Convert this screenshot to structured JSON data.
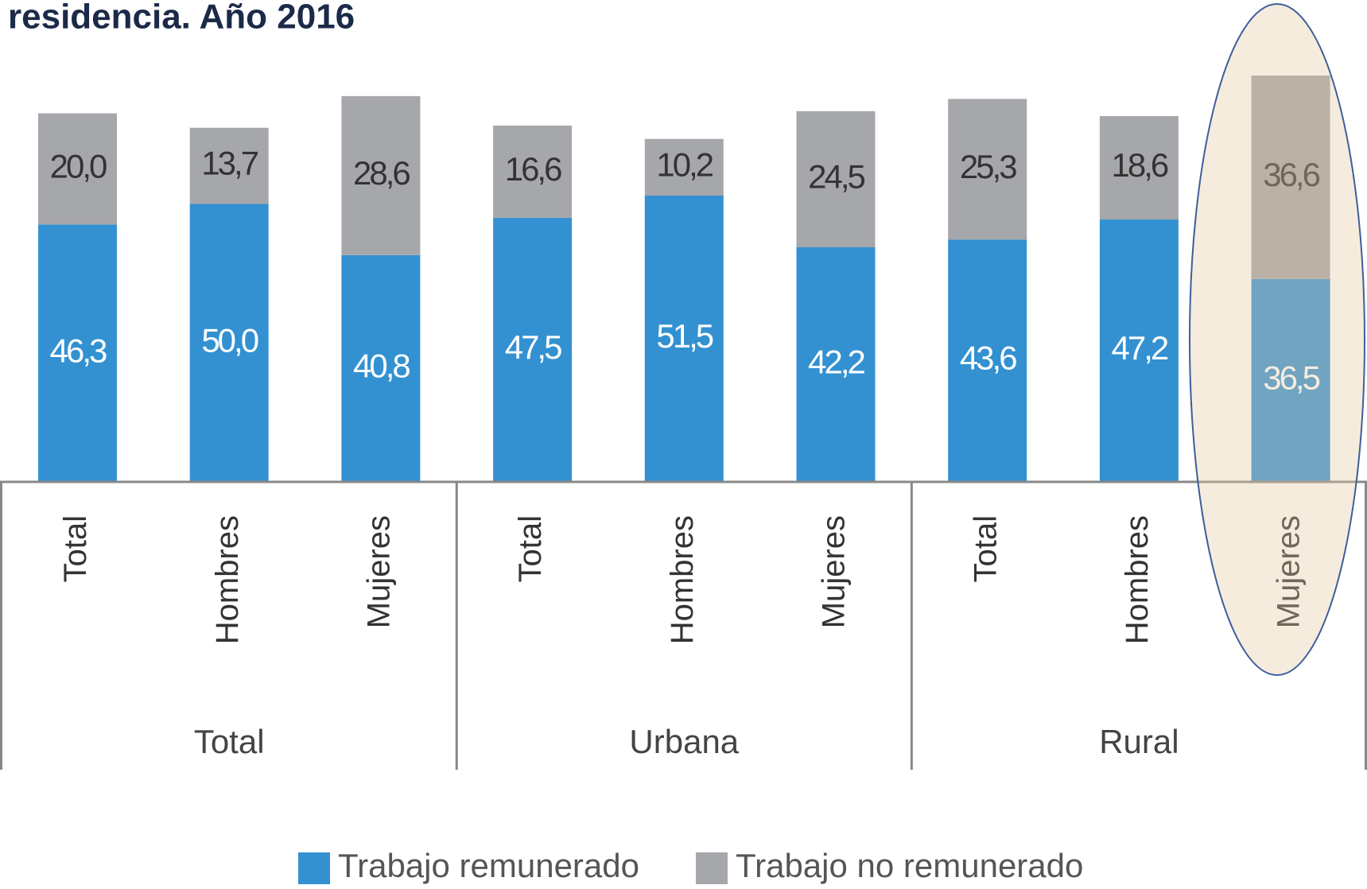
{
  "chart_data": {
    "type": "stacked_bar",
    "title": "residencia. Año 2016",
    "categories": [
      "Total",
      "Hombres",
      "Mujeres",
      "Total",
      "Hombres",
      "Mujeres",
      "Total",
      "Hombres",
      "Mujeres"
    ],
    "groups": [
      "Total",
      "Urbana",
      "Rural"
    ],
    "series": [
      {
        "name": "Trabajo remunerado",
        "color": "#3391d1",
        "values": [
          46.3,
          50.0,
          40.8,
          47.5,
          51.5,
          42.2,
          43.6,
          47.2,
          36.5
        ],
        "value_labels": [
          "46,3",
          "50,0",
          "40,8",
          "47,5",
          "51,5",
          "42,2",
          "43,6",
          "47,2",
          "36,5"
        ]
      },
      {
        "name": "Trabajo no remunerado",
        "color": "#a6a7ab",
        "values": [
          20.0,
          13.7,
          28.6,
          16.6,
          10.2,
          24.5,
          25.3,
          18.6,
          36.6
        ],
        "value_labels": [
          "20,0",
          "13,7",
          "28,6",
          "16,6",
          "10,2",
          "24,5",
          "25,3",
          "18,6",
          "36,6"
        ]
      }
    ],
    "legend": "bottom"
  }
}
